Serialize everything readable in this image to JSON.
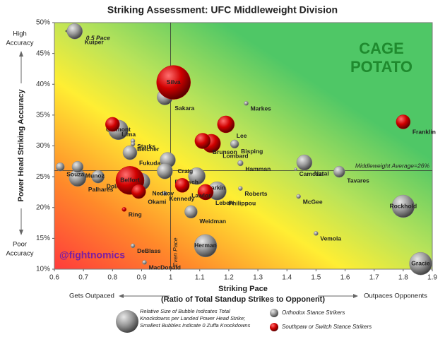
{
  "chart_data": {
    "type": "scatter",
    "title": "Striking Assessment: UFC Middleweight Division",
    "x_label": "Striking Pace",
    "x_sublabel": "(Ratio of Total Standup Strikes to Opponent)",
    "y_label": "Power Head Striking Accuracy",
    "y_top_note": [
      "High",
      "Accuracy"
    ],
    "y_bottom_note": [
      "Poor",
      "Accuracy"
    ],
    "x_left_note": "Gets Outpaced",
    "x_right_note": "Outpaces Opponents",
    "average_label": "Middleweight Average=26%",
    "average_y": 26,
    "even_pace_label": "Even Pace",
    "even_pace_x": 1,
    "kuiper_note": "0.5 Pace",
    "credit": "@fightnomics",
    "logo": [
      "CAGE",
      "POTATO"
    ],
    "size_note": [
      "Relative Size of Bubble Indicates Total",
      "Knockdowns per Landed Power Head Strike;",
      "Smallest Bubbles Indicate 0 Zuffa Knockdowns"
    ],
    "xlim": [
      0.6,
      1.9
    ],
    "xticks": [
      0.6,
      0.7,
      0.8,
      0.9,
      1,
      1.1,
      1.2,
      1.3,
      1.4,
      1.5,
      1.6,
      1.7,
      1.8,
      1.9
    ],
    "ylim": [
      10,
      50
    ],
    "yticks": [
      {
        "value": 10,
        "label": "10%"
      },
      {
        "value": 15,
        "label": "15%"
      },
      {
        "value": 20,
        "label": "20%"
      },
      {
        "value": 25,
        "label": "25%"
      },
      {
        "value": 30,
        "label": "30%"
      },
      {
        "value": 35,
        "label": "35%"
      },
      {
        "value": 40,
        "label": "40%"
      },
      {
        "value": 45,
        "label": "45%"
      },
      {
        "value": 50,
        "label": "50%"
      }
    ],
    "series": [
      {
        "name": "Orthodox Stance Strikers",
        "color": "#8a8a8a",
        "labels": [
          "Kuiper",
          "Sakara",
          "Markes",
          "Carmont",
          "Starks",
          "Belcher",
          "Fukuda",
          "Bisping",
          "Craig",
          "Souza",
          "Munoz",
          "Hamman",
          "Natal",
          "Camozzi",
          "Tavares",
          "Palhares",
          "Dolloway",
          "Boetsch",
          "Nedkov",
          "Larkin",
          "Roberts",
          "Kennedy",
          "McGee",
          "Philippou",
          "Weidman",
          "Rockhold",
          "Vemola",
          "DeBlass",
          "Herman",
          "MacDonald",
          "Gracie"
        ],
        "x": [
          0.67,
          0.98,
          1.26,
          0.82,
          0.87,
          0.87,
          0.86,
          1.22,
          0.99,
          0.62,
          0.68,
          1.24,
          1.46,
          1.43,
          1.58,
          0.68,
          0.75,
          0.98,
          0.9,
          1.09,
          1.24,
          0.98,
          1.44,
          1.16,
          1.07,
          1.8,
          1.5,
          0.87,
          1.12,
          0.91,
          1.86
        ],
        "values": [
          48.6,
          37.9,
          36.9,
          32.6,
          30.8,
          30.3,
          28.9,
          30.3,
          27.7,
          26.6,
          26.6,
          27.2,
          27.3,
          26.2,
          25.8,
          24.8,
          25.0,
          25.9,
          24.2,
          25.1,
          23.1,
          22.3,
          21.8,
          22.7,
          19.3,
          20.2,
          15.8,
          13.8,
          13.8,
          11.1,
          10.9
        ],
        "sizes": [
          11,
          11,
          3,
          14,
          3,
          3,
          10,
          6,
          11,
          6,
          8,
          4,
          11,
          2,
          8,
          12,
          9,
          11,
          12,
          12,
          3,
          3,
          3,
          13,
          9,
          16,
          3,
          3,
          16,
          3,
          16
        ]
      },
      {
        "name": "Southpaw or Switch Stance Strikers",
        "color": "#c00000",
        "labels": [
          "Silva",
          "Lee",
          "Franklin",
          "Lima",
          "Brunson",
          "Lombard",
          "Belfort",
          "Lawlor",
          "Okami",
          "Leben",
          "Ring"
        ],
        "x": [
          1.01,
          1.19,
          1.8,
          0.8,
          1.11,
          1.14,
          0.86,
          1.04,
          0.89,
          1.12,
          0.84
        ],
        "values": [
          40.3,
          33.5,
          33.9,
          33.5,
          30.8,
          30.4,
          24.4,
          23.6,
          22.6,
          22.5,
          19.7
        ],
        "sizes": [
          24,
          12,
          10,
          10,
          11,
          13,
          20,
          10,
          10,
          11,
          3
        ]
      }
    ]
  }
}
